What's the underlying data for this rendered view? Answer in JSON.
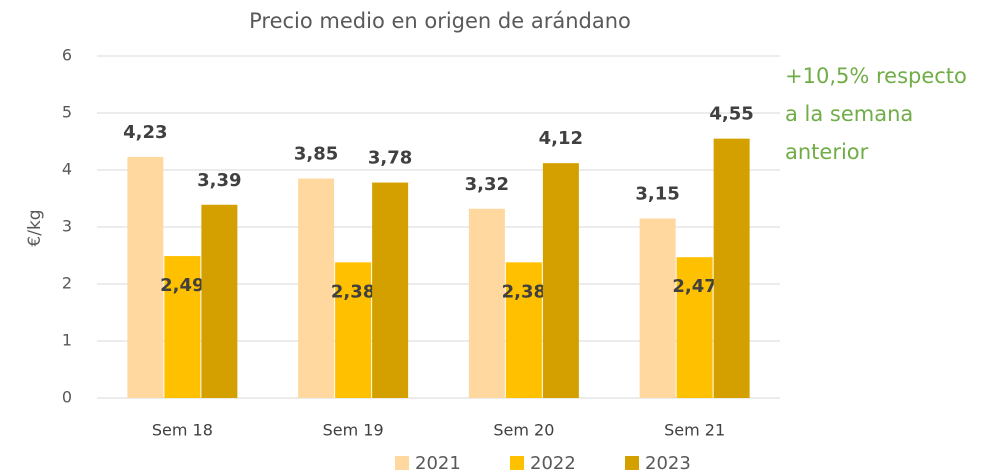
{
  "chart_data": {
    "type": "bar",
    "title": "Precio medio en origen de arándano",
    "y_label": "€/kg",
    "categories": [
      "Sem 18",
      "Sem 19",
      "Sem 20",
      "Sem 21"
    ],
    "series": [
      {
        "name": "2021",
        "color": "#ffd8a0",
        "values": [
          4.23,
          3.85,
          3.32,
          3.15
        ],
        "value_labels": [
          "4,23",
          "3,85",
          "3,32",
          "3,15"
        ]
      },
      {
        "name": "2022",
        "color": "#ffc000",
        "values": [
          2.49,
          2.38,
          2.38,
          2.47
        ],
        "value_labels": [
          "2,49",
          "2,38",
          "2,38",
          "2,47"
        ]
      },
      {
        "name": "2023",
        "color": "#d4a000",
        "values": [
          3.39,
          3.78,
          4.12,
          4.55
        ],
        "value_labels": [
          "3,39",
          "3,78",
          "4,12",
          "4,55"
        ]
      }
    ],
    "ylim": [
      0,
      6
    ],
    "yticks": [
      0,
      1,
      2,
      3,
      4,
      5,
      6
    ],
    "grid": true,
    "annotation": [
      "+10,5% respecto",
      "a la semana",
      "anterior"
    ]
  }
}
